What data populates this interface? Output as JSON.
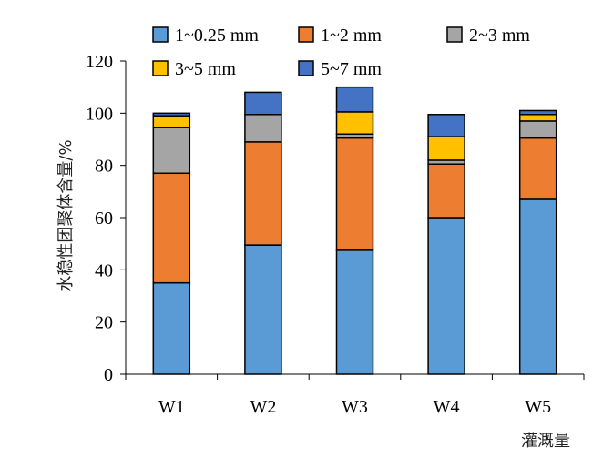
{
  "chart_data": {
    "type": "bar",
    "stacked": true,
    "categories": [
      "W1",
      "W2",
      "W3",
      "W4",
      "W5"
    ],
    "series": [
      {
        "name": "1~0.25 mm",
        "color": "#5B9BD5",
        "values": [
          35,
          49.5,
          47.5,
          60,
          67
        ]
      },
      {
        "name": "1~2 mm",
        "color": "#ED7D31",
        "values": [
          42,
          39.5,
          43,
          20.5,
          23.5
        ]
      },
      {
        "name": "2~3 mm",
        "color": "#A5A5A5",
        "values": [
          17.5,
          10.5,
          1.5,
          1.5,
          6.5
        ]
      },
      {
        "name": "3~5 mm",
        "color": "#FFC000",
        "values": [
          4.5,
          0,
          8.5,
          9,
          2.5
        ]
      },
      {
        "name": "5~7 mm",
        "color": "#4472C4",
        "values": [
          1,
          8.5,
          9.5,
          8.5,
          1.5
        ]
      }
    ],
    "xlabel": "灌溉量",
    "ylabel": "水稳性团聚体含量/%",
    "ylim": [
      0,
      120
    ],
    "yticks": [
      0,
      20,
      40,
      60,
      80,
      100,
      120
    ],
    "grid": false,
    "legend_position": "top"
  }
}
